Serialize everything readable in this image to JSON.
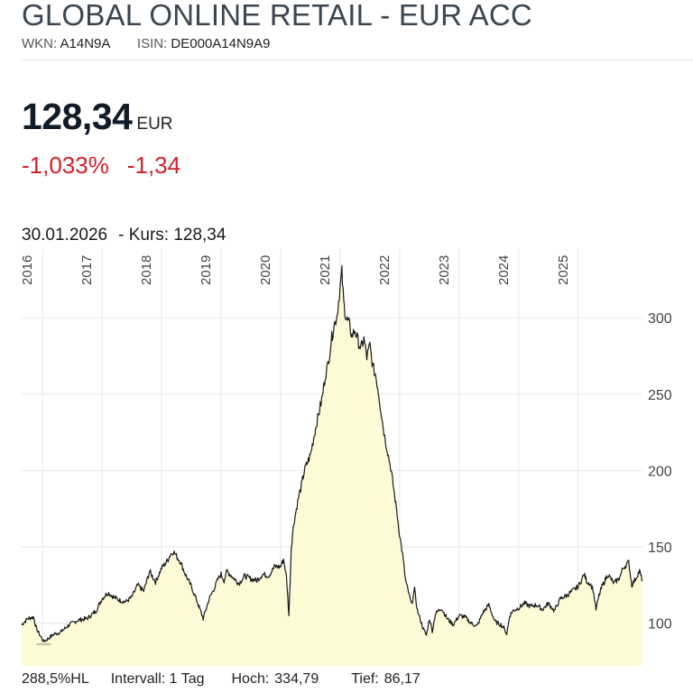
{
  "header": {
    "title": "GLOBAL ONLINE RETAIL - EUR ACC",
    "wkn_label": "WKN:",
    "wkn": "A14N9A",
    "isin_label": "ISIN:",
    "isin": "DE000A14N9A9"
  },
  "quote": {
    "price": "128,34",
    "currency": "EUR",
    "change_pct": "-1,033%",
    "change_abs": "-1,34",
    "date": "30.01.2026",
    "kurs_label": "- Kurs: 128,34"
  },
  "footer": {
    "hl": "288,5%HL",
    "intervall": "Intervall: 1 Tag",
    "hoch_label": "Hoch:",
    "hoch": "334,79",
    "tief_label": "Tief:",
    "tief": "86,17"
  },
  "colors": {
    "line": "#1a1a1a",
    "fill": "#fefad5",
    "negative": "#d3202a",
    "grid": "#e6e6e6"
  },
  "chart_data": {
    "type": "area",
    "x_unit": "year",
    "x_range": [
      2015.65,
      2026.08
    ],
    "ylim": [
      72,
      345
    ],
    "yticks": [
      100,
      150,
      200,
      250,
      300
    ],
    "ytick_labels": [
      "100",
      "150",
      "200",
      "250",
      "300"
    ],
    "xticks": [
      2016,
      2017,
      2018,
      2019,
      2020,
      2021,
      2022,
      2023,
      2024,
      2025
    ],
    "xtick_labels": [
      "2016",
      "2017",
      "2018",
      "2019",
      "2020",
      "2021",
      "2022",
      "2023",
      "2024",
      "2025"
    ],
    "grid": true,
    "x": [
      2015.65,
      2015.75,
      2015.85,
      2015.9,
      2015.96,
      2016.02,
      2016.1,
      2016.2,
      2016.3,
      2016.45,
      2016.6,
      2016.75,
      2016.9,
      2017.0,
      2017.1,
      2017.2,
      2017.3,
      2017.4,
      2017.5,
      2017.6,
      2017.7,
      2017.8,
      2017.9,
      2018.0,
      2018.1,
      2018.15,
      2018.2,
      2018.25,
      2018.32,
      2018.4,
      2018.5,
      2018.6,
      2018.7,
      2018.8,
      2018.9,
      2018.95,
      2019.0,
      2019.05,
      2019.1,
      2019.2,
      2019.3,
      2019.4,
      2019.5,
      2019.6,
      2019.7,
      2019.8,
      2019.9,
      2020.0,
      2020.05,
      2020.1,
      2020.14,
      2020.18,
      2020.22,
      2020.3,
      2020.35,
      2020.4,
      2020.5,
      2020.6,
      2020.7,
      2020.75,
      2020.8,
      2020.85,
      2020.9,
      2020.95,
      2021.0,
      2021.03,
      2021.06,
      2021.1,
      2021.15,
      2021.2,
      2021.25,
      2021.3,
      2021.35,
      2021.4,
      2021.45,
      2021.5,
      2021.55,
      2021.6,
      2021.65,
      2021.7,
      2021.75,
      2021.8,
      2021.85,
      2021.9,
      2021.95,
      2022.0,
      2022.05,
      2022.1,
      2022.15,
      2022.2,
      2022.25,
      2022.3,
      2022.35,
      2022.4,
      2022.45,
      2022.5,
      2022.55,
      2022.6,
      2022.7,
      2022.8,
      2022.9,
      2023.0,
      2023.1,
      2023.2,
      2023.3,
      2023.4,
      2023.5,
      2023.6,
      2023.7,
      2023.75,
      2023.8,
      2023.85,
      2023.9,
      2024.0,
      2024.1,
      2024.2,
      2024.3,
      2024.4,
      2024.5,
      2024.6,
      2024.7,
      2024.8,
      2024.9,
      2025.0,
      2025.05,
      2025.1,
      2025.15,
      2025.2,
      2025.25,
      2025.3,
      2025.35,
      2025.4,
      2025.5,
      2025.6,
      2025.7,
      2025.75,
      2025.8,
      2025.85,
      2025.9,
      2025.95,
      2026.0,
      2026.03,
      2026.06,
      2026.08
    ],
    "y": [
      99,
      103,
      104,
      96,
      92,
      88,
      90,
      93,
      94,
      99,
      102,
      103,
      108,
      116,
      120,
      117,
      115,
      114,
      117,
      125,
      121,
      134,
      127,
      136,
      141,
      145,
      147,
      144,
      140,
      132,
      124,
      114,
      103,
      116,
      124,
      129,
      132,
      128,
      134,
      130,
      126,
      131,
      129,
      128,
      132,
      131,
      137,
      137,
      142,
      130,
      105,
      150,
      165,
      182,
      190,
      200,
      210,
      230,
      248,
      262,
      270,
      285,
      295,
      302,
      320,
      330,
      310,
      300,
      296,
      288,
      292,
      285,
      280,
      286,
      274,
      282,
      268,
      262,
      250,
      235,
      222,
      212,
      202,
      188,
      174,
      158,
      145,
      128,
      120,
      112,
      122,
      108,
      102,
      96,
      92,
      103,
      95,
      106,
      110,
      103,
      99,
      105,
      104,
      100,
      98,
      107,
      112,
      101,
      99,
      97,
      93,
      105,
      108,
      110,
      113,
      111,
      112,
      109,
      113,
      108,
      116,
      118,
      121,
      124,
      128,
      132,
      127,
      126,
      122,
      109,
      118,
      124,
      132,
      126,
      130,
      136,
      138,
      140,
      125,
      128,
      132,
      134,
      130,
      128.34
    ]
  }
}
